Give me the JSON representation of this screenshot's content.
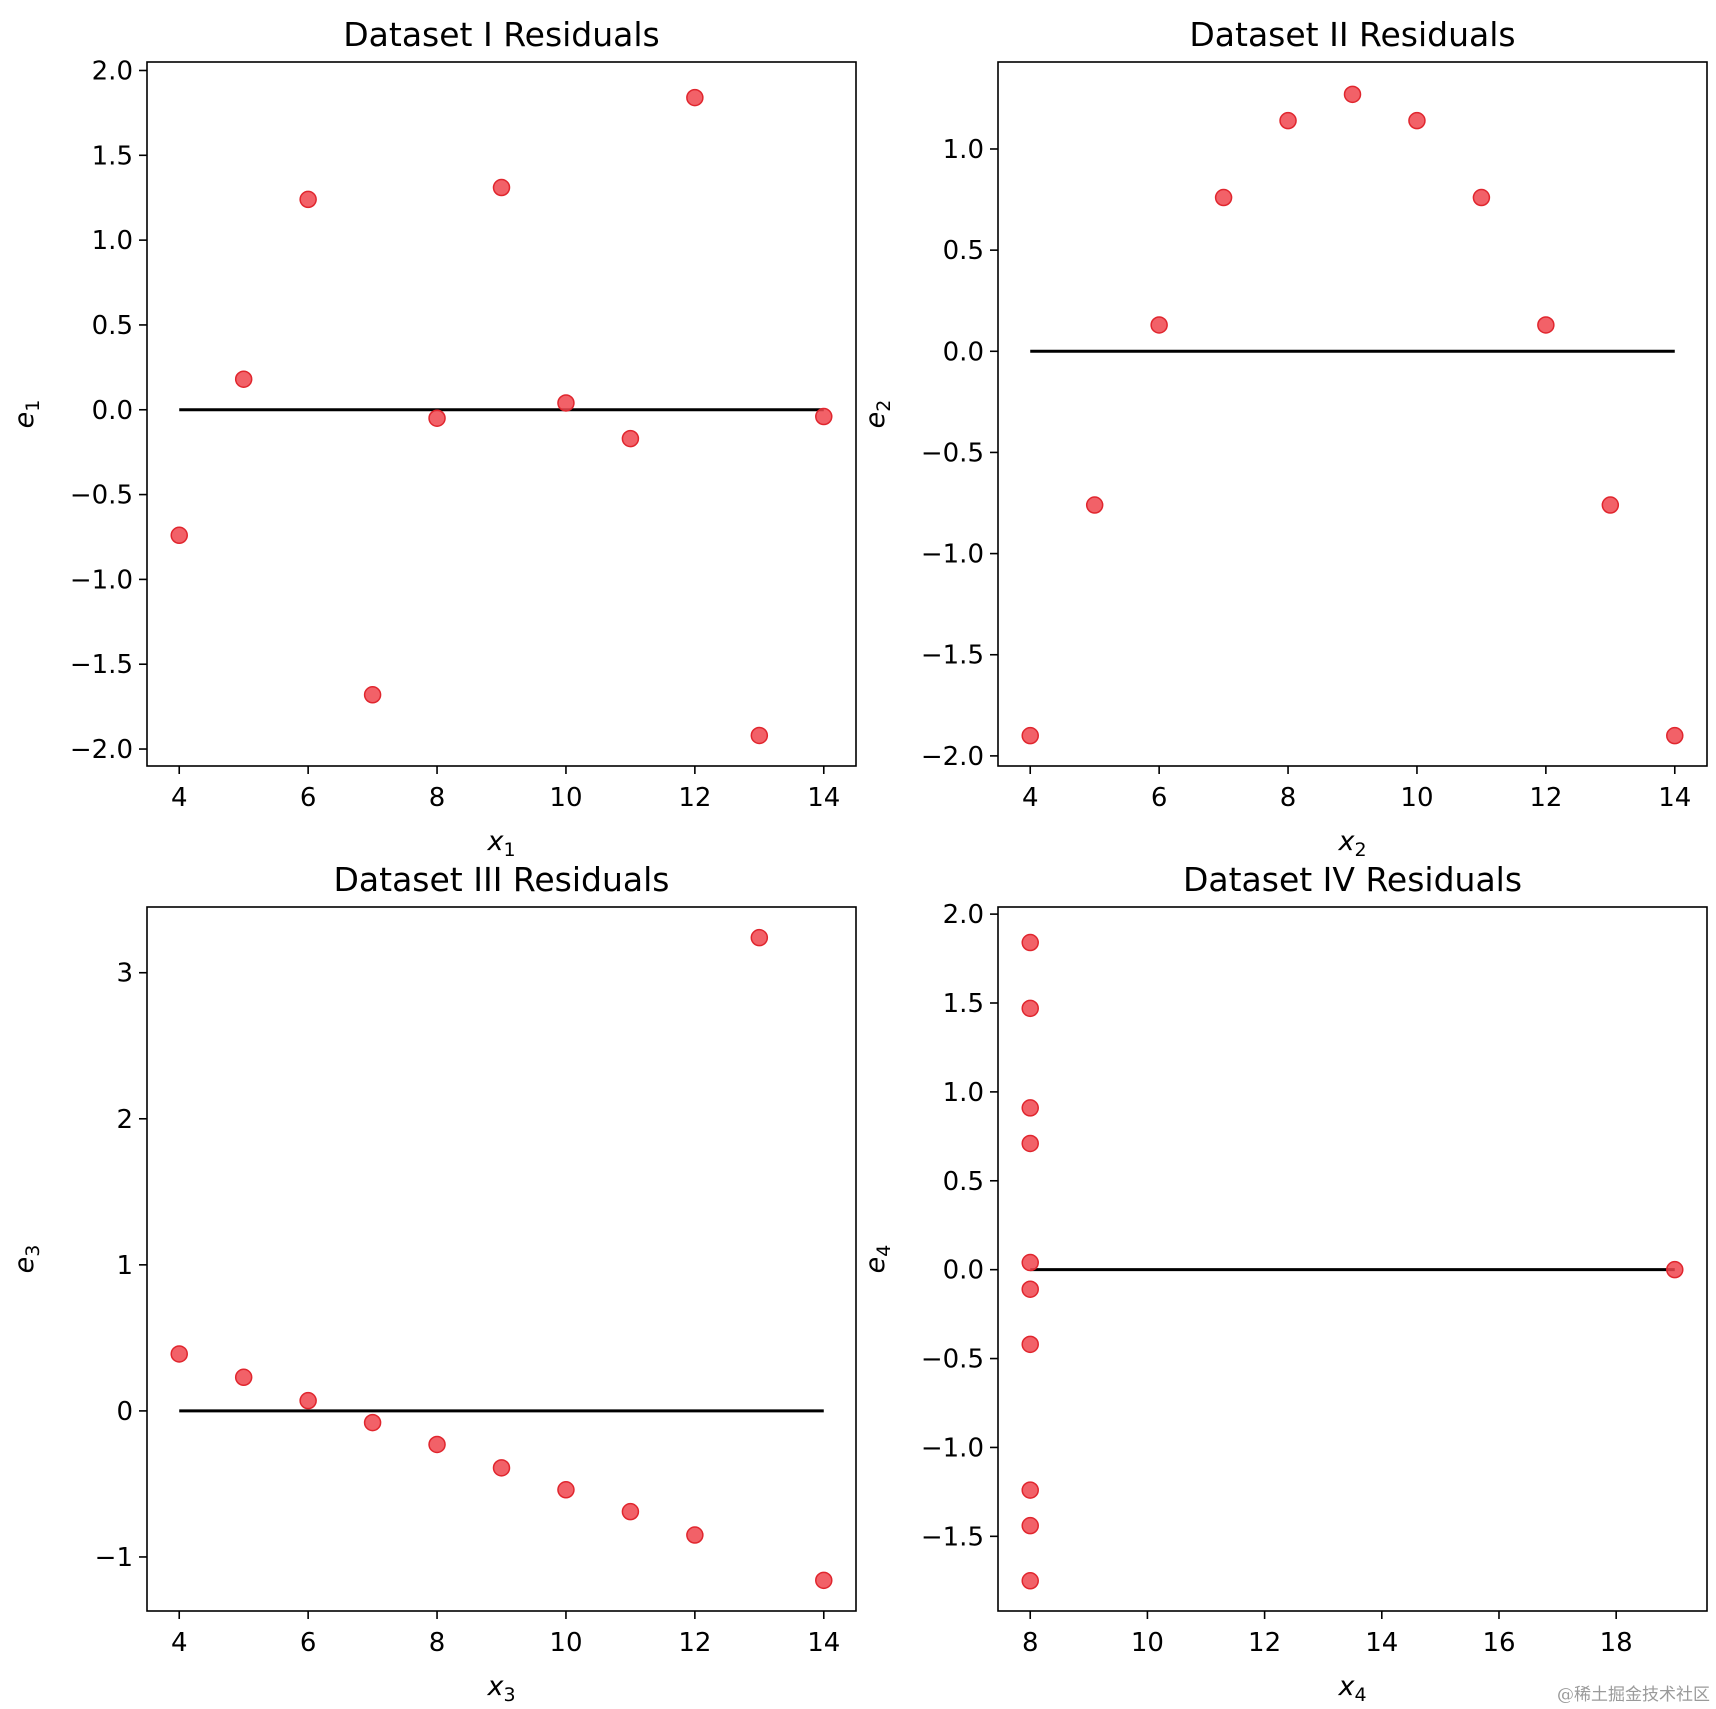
{
  "chart_data": [
    {
      "type": "scatter",
      "title": "Dataset I Residuals",
      "xlabel": "x",
      "xlabel_sub": "1",
      "ylabel": "e",
      "ylabel_sub": "1",
      "xlim": [
        3.5,
        14.5
      ],
      "ylim": [
        -2.1,
        2.05
      ],
      "xticks": [
        4,
        6,
        8,
        10,
        12,
        14
      ],
      "yticks": [
        -2.0,
        -1.5,
        -1.0,
        -0.5,
        0.0,
        0.5,
        1.0,
        1.5,
        2.0
      ],
      "ytick_labels": [
        "−2.0",
        "−1.5",
        "−1.0",
        "−0.5",
        "0.0",
        "0.5",
        "1.0",
        "1.5",
        "2.0"
      ],
      "x": [
        4,
        5,
        6,
        7,
        8,
        9,
        10,
        11,
        12,
        13,
        14
      ],
      "y": [
        -0.74,
        0.18,
        1.24,
        -1.68,
        -0.05,
        1.31,
        0.04,
        -0.17,
        1.84,
        -1.92,
        -0.04
      ],
      "reference_line": {
        "x": [
          4,
          14
        ],
        "y": [
          0,
          0
        ]
      }
    },
    {
      "type": "scatter",
      "title": "Dataset II Residuals",
      "xlabel": "x",
      "xlabel_sub": "2",
      "ylabel": "e",
      "ylabel_sub": "2",
      "xlim": [
        3.5,
        14.5
      ],
      "ylim": [
        -2.05,
        1.43
      ],
      "xticks": [
        4,
        6,
        8,
        10,
        12,
        14
      ],
      "yticks": [
        -2.0,
        -1.5,
        -1.0,
        -0.5,
        0.0,
        0.5,
        1.0
      ],
      "ytick_labels": [
        "−2.0",
        "−1.5",
        "−1.0",
        "−0.5",
        "0.0",
        "0.5",
        "1.0"
      ],
      "x": [
        4,
        5,
        6,
        7,
        8,
        9,
        10,
        11,
        12,
        13,
        14
      ],
      "y": [
        -1.9,
        -0.76,
        0.13,
        0.76,
        1.14,
        1.27,
        1.14,
        0.76,
        0.13,
        -0.76,
        -1.9
      ],
      "reference_line": {
        "x": [
          4,
          14
        ],
        "y": [
          0,
          0
        ]
      }
    },
    {
      "type": "scatter",
      "title": "Dataset III Residuals",
      "xlabel": "x",
      "xlabel_sub": "3",
      "ylabel": "e",
      "ylabel_sub": "3",
      "xlim": [
        3.5,
        14.5
      ],
      "ylim": [
        -1.37,
        3.45
      ],
      "xticks": [
        4,
        6,
        8,
        10,
        12,
        14
      ],
      "yticks": [
        -1,
        0,
        1,
        2,
        3
      ],
      "ytick_labels": [
        "−1",
        "0",
        "1",
        "2",
        "3"
      ],
      "x": [
        4,
        5,
        6,
        7,
        8,
        9,
        10,
        11,
        12,
        13,
        14
      ],
      "y": [
        0.39,
        0.23,
        0.07,
        -0.08,
        -0.23,
        -0.39,
        -0.54,
        -0.69,
        -0.85,
        3.24,
        -1.16
      ],
      "reference_line": {
        "x": [
          4,
          14
        ],
        "y": [
          0,
          0
        ]
      }
    },
    {
      "type": "scatter",
      "title": "Dataset IV Residuals",
      "xlabel": "x",
      "xlabel_sub": "4",
      "ylabel": "e",
      "ylabel_sub": "4",
      "xlim": [
        7.45,
        19.55
      ],
      "ylim": [
        -1.92,
        2.04
      ],
      "xticks": [
        8,
        10,
        12,
        14,
        16,
        18
      ],
      "yticks": [
        -1.5,
        -1.0,
        -0.5,
        0.0,
        0.5,
        1.0,
        1.5,
        2.0
      ],
      "ytick_labels": [
        "−1.5",
        "−1.0",
        "−0.5",
        "0.0",
        "0.5",
        "1.0",
        "1.5",
        "2.0"
      ],
      "x": [
        8,
        8,
        8,
        8,
        8,
        8,
        8,
        8,
        8,
        8,
        19
      ],
      "y": [
        1.84,
        1.47,
        0.91,
        0.71,
        0.04,
        -0.11,
        -0.42,
        -1.24,
        -1.44,
        -1.75,
        0.0
      ],
      "reference_line": {
        "x": [
          8,
          19
        ],
        "y": [
          0,
          0
        ]
      }
    }
  ],
  "style": {
    "marker_fill": "#f0454d",
    "marker_edge": "#e0262e",
    "line_color": "#000000",
    "frame_color": "#000000"
  },
  "watermark": "@稀土掘金技术社区"
}
